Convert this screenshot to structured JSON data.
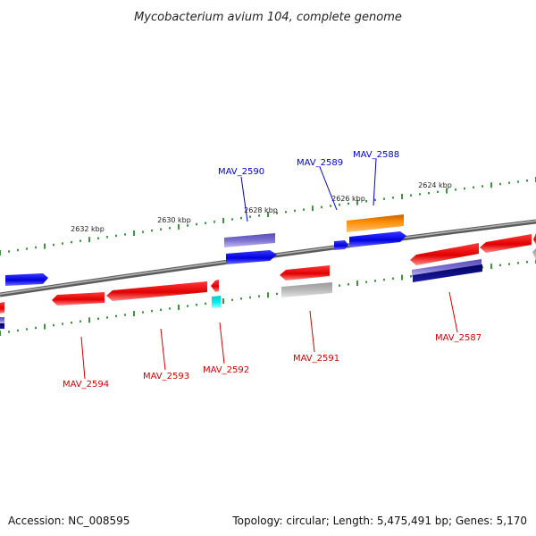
{
  "title": "Mycobacterium avium 104, complete genome",
  "footer": {
    "accession": "Accession: NC_008595",
    "summary": "Topology: circular; Length: 5,475,491 bp; Genes: 5,170"
  },
  "colors": {
    "forward_gene": "#0000ee",
    "reverse_gene": "#ee0000",
    "backbone": "#888888",
    "tick": "#117711",
    "orange_gene": "#ff8800",
    "cyan_gene": "#00e5e5",
    "purple_feature": "#7b6fd0",
    "navy_feature": "#0c0c80",
    "grey_feature": "#b8b8b8"
  },
  "scale_labels": [
    "2632 kbp",
    "2630 kbp",
    "2628 kbp",
    "2626 kbp",
    "2624 kbp"
  ],
  "gene_labels": {
    "top": [
      "MAV_2590",
      "MAV_2589",
      "MAV_2588"
    ],
    "bottom": [
      "MAV_2594",
      "MAV_2593",
      "MAV_2592",
      "MAV_2591",
      "MAV_2587"
    ]
  }
}
